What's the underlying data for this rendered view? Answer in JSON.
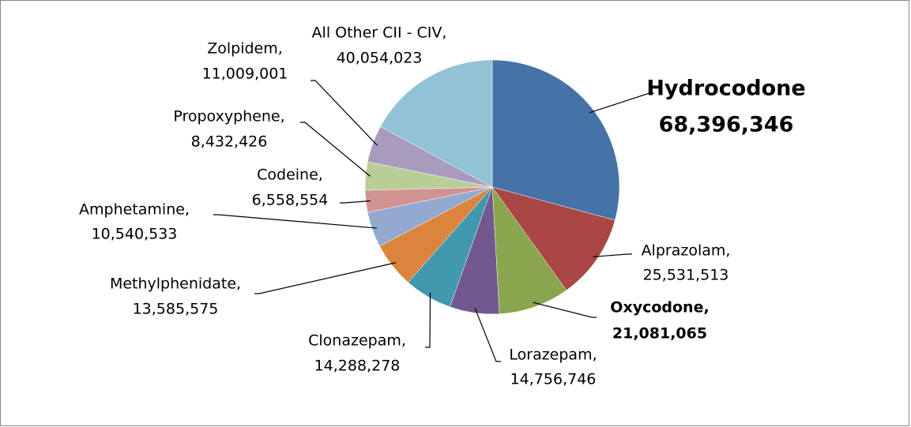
{
  "chart_data": {
    "type": "pie",
    "categories": [
      "Hydrocodone",
      "Alprazolam,",
      "Oxycodone,",
      "Lorazepam,",
      "Clonazepam,",
      "Methylphenidate,",
      "Amphetamine,",
      "Codeine,",
      "Propoxyphene,",
      "Zolpidem,",
      "All Other CII - CIV,"
    ],
    "values": [
      68396346,
      25531513,
      21081065,
      14756746,
      14288278,
      13585575,
      10540533,
      6558554,
      8432426,
      11009001,
      40054023
    ],
    "value_labels": [
      "68,396,346",
      "25,531,513",
      "21,081,065",
      "14,756,746",
      "14,288,278",
      "13,585,575",
      "10,540,533",
      "6,558,554",
      "8,432,426",
      "11,009,001",
      "40,054,023"
    ],
    "colors": [
      "#4572a7",
      "#aa4643",
      "#89a54e",
      "#71588f",
      "#4198af",
      "#db843d",
      "#93a9cf",
      "#d19392",
      "#b9cd96",
      "#a99bbd",
      "#92c3d5"
    ]
  }
}
